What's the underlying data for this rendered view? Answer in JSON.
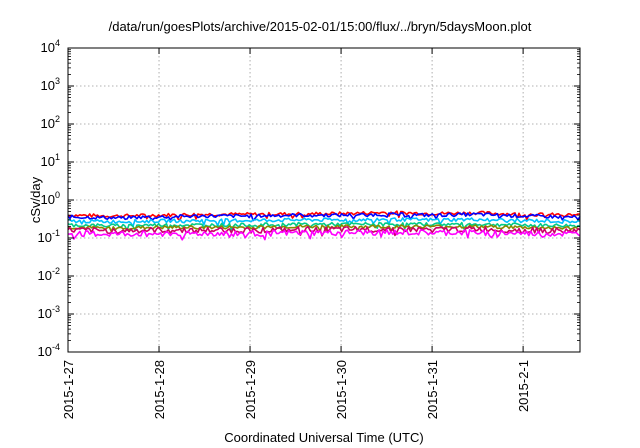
{
  "chart_data": {
    "type": "line",
    "title": "/data/run/goesPlots/archive/2015-02-01/15:00/flux/../bryn/5daysMoon.plot",
    "xlabel": "Coordinated Universal Time (UTC)",
    "ylabel": "cSv/day",
    "yscale": "log",
    "ylim": [
      0.0001,
      10000
    ],
    "xlim": [
      "2015-01-27 00:00",
      "2015-02-01 15:00"
    ],
    "y_ticks": [
      {
        "base": "10",
        "exp": "-4"
      },
      {
        "base": "10",
        "exp": "-3"
      },
      {
        "base": "10",
        "exp": "-2"
      },
      {
        "base": "10",
        "exp": "-1"
      },
      {
        "base": "10",
        "exp": "0"
      },
      {
        "base": "10",
        "exp": "1"
      },
      {
        "base": "10",
        "exp": "2"
      },
      {
        "base": "10",
        "exp": "3"
      },
      {
        "base": "10",
        "exp": "4"
      }
    ],
    "x_ticks": [
      "2015-1-27",
      "2015-1-28",
      "2015-1-29",
      "2015-1-30",
      "2015-1-31",
      "2015-2-1"
    ],
    "grid": true,
    "legend": "none",
    "x": [
      "2015-01-27 00:00",
      "2015-01-27 12:00",
      "2015-01-28 00:00",
      "2015-01-28 12:00",
      "2015-01-29 00:00",
      "2015-01-29 12:00",
      "2015-01-30 00:00",
      "2015-01-30 12:00",
      "2015-01-31 00:00",
      "2015-01-31 12:00",
      "2015-02-01 00:00",
      "2015-02-01 15:00"
    ],
    "series": [
      {
        "color": "#ff0000",
        "values": [
          0.4,
          0.38,
          0.4,
          0.42,
          0.42,
          0.43,
          0.44,
          0.47,
          0.44,
          0.46,
          0.42,
          0.4
        ]
      },
      {
        "color": "#0000ff",
        "values": [
          0.36,
          0.34,
          0.36,
          0.38,
          0.38,
          0.4,
          0.4,
          0.42,
          0.4,
          0.42,
          0.38,
          0.35
        ]
      },
      {
        "color": "#00bfff",
        "values": [
          0.28,
          0.27,
          0.28,
          0.29,
          0.29,
          0.3,
          0.3,
          0.31,
          0.3,
          0.31,
          0.29,
          0.27
        ]
      },
      {
        "color": "#00cc88",
        "values": [
          0.22,
          0.21,
          0.22,
          0.22,
          0.22,
          0.23,
          0.23,
          0.23,
          0.23,
          0.23,
          0.22,
          0.21
        ]
      },
      {
        "color": "#888800",
        "values": [
          0.19,
          0.18,
          0.19,
          0.19,
          0.19,
          0.2,
          0.2,
          0.2,
          0.2,
          0.2,
          0.19,
          0.18
        ]
      },
      {
        "color": "#cc0066",
        "values": [
          0.16,
          0.155,
          0.16,
          0.16,
          0.16,
          0.165,
          0.165,
          0.17,
          0.165,
          0.17,
          0.16,
          0.155
        ]
      },
      {
        "color": "#ff00ff",
        "values": [
          0.13,
          0.125,
          0.13,
          0.13,
          0.13,
          0.135,
          0.135,
          0.14,
          0.135,
          0.14,
          0.13,
          0.125
        ]
      }
    ]
  }
}
